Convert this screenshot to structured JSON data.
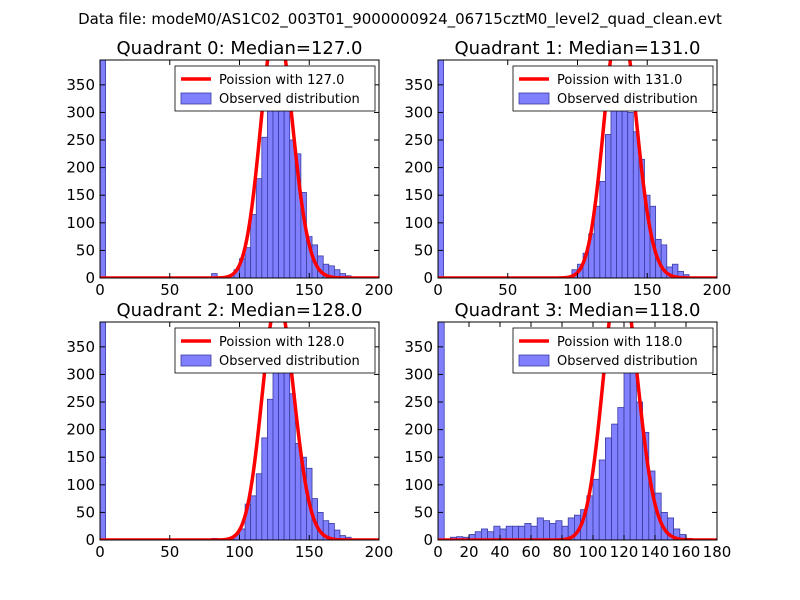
{
  "figure": {
    "suptitle": "Data file: modeM0/AS1C02_003T01_9000000924_06715cztM0_level2_quad_clean.evt"
  },
  "colors": {
    "bar_fill": "#8080ff",
    "bar_edge": "#3a3aa0",
    "poisson_line": "#ff0000",
    "legend_edge": "#000000"
  },
  "chart_data": [
    {
      "type": "bar",
      "title": "Quadrant 0: Median=127.0",
      "median": 127.0,
      "xlim": [
        0,
        200
      ],
      "ylim": [
        0,
        395
      ],
      "xticks": [
        0,
        50,
        100,
        150,
        200
      ],
      "yticks": [
        0,
        50,
        100,
        150,
        200,
        250,
        300,
        350
      ],
      "xlabel": "",
      "ylabel": "",
      "legend": {
        "position": "top-right",
        "poisson_label": "Poission with 127.0",
        "observed_label": "Observed distribution"
      },
      "bin_width": 4,
      "bin_starts": [
        0,
        80,
        92,
        96,
        100,
        104,
        108,
        112,
        116,
        120,
        124,
        128,
        132,
        136,
        140,
        144,
        148,
        152,
        156,
        160,
        164,
        168,
        172,
        176,
        180
      ],
      "counts": [
        395,
        8,
        4,
        15,
        35,
        55,
        115,
        180,
        255,
        320,
        360,
        345,
        310,
        250,
        225,
        155,
        75,
        60,
        40,
        25,
        22,
        15,
        8,
        4,
        2
      ]
    },
    {
      "type": "bar",
      "title": "Quadrant 1: Median=131.0",
      "median": 131.0,
      "xlim": [
        0,
        200
      ],
      "ylim": [
        0,
        395
      ],
      "xticks": [
        0,
        50,
        100,
        150,
        200
      ],
      "yticks": [
        0,
        50,
        100,
        150,
        200,
        250,
        300,
        350
      ],
      "xlabel": "",
      "ylabel": "",
      "legend": {
        "position": "top-right",
        "poisson_label": "Poission with 131.0",
        "observed_label": "Observed distribution"
      },
      "bin_width": 4,
      "bin_starts": [
        0,
        92,
        96,
        100,
        104,
        108,
        112,
        116,
        120,
        124,
        128,
        132,
        136,
        140,
        144,
        148,
        152,
        156,
        160,
        164,
        168,
        172,
        176,
        180
      ],
      "counts": [
        395,
        3,
        15,
        25,
        45,
        80,
        130,
        175,
        260,
        315,
        365,
        340,
        300,
        265,
        215,
        150,
        130,
        70,
        60,
        20,
        25,
        12,
        6,
        2
      ]
    },
    {
      "type": "bar",
      "title": "Quadrant 2: Median=128.0",
      "median": 128.0,
      "xlim": [
        0,
        200
      ],
      "ylim": [
        0,
        395
      ],
      "xticks": [
        0,
        50,
        100,
        150,
        200
      ],
      "yticks": [
        0,
        50,
        100,
        150,
        200,
        250,
        300,
        350
      ],
      "xlabel": "",
      "ylabel": "",
      "legend": {
        "position": "top-right",
        "poisson_label": "Poission with 128.0",
        "observed_label": "Observed distribution"
      },
      "bin_width": 4,
      "bin_starts": [
        0,
        80,
        92,
        96,
        100,
        104,
        108,
        112,
        116,
        120,
        124,
        128,
        132,
        136,
        140,
        144,
        148,
        152,
        156,
        160,
        164,
        168,
        172,
        176,
        180
      ],
      "counts": [
        395,
        3,
        4,
        10,
        20,
        65,
        80,
        120,
        185,
        255,
        345,
        355,
        320,
        265,
        175,
        150,
        130,
        75,
        50,
        35,
        30,
        18,
        8,
        5,
        2
      ]
    },
    {
      "type": "bar",
      "title": "Quadrant 3: Median=118.0",
      "median": 118.0,
      "xlim": [
        0,
        180
      ],
      "ylim": [
        0,
        395
      ],
      "xticks": [
        0,
        20,
        40,
        60,
        80,
        100,
        120,
        140,
        160,
        180
      ],
      "yticks": [
        0,
        50,
        100,
        150,
        200,
        250,
        300,
        350
      ],
      "xlabel": "",
      "ylabel": "",
      "legend": {
        "position": "top-right",
        "poisson_label": "Poission with 118.0",
        "observed_label": "Observed distribution"
      },
      "bin_width": 4,
      "bin_starts": [
        0,
        8,
        12,
        16,
        20,
        24,
        28,
        32,
        36,
        40,
        44,
        48,
        52,
        56,
        60,
        64,
        68,
        72,
        76,
        80,
        84,
        88,
        92,
        96,
        100,
        104,
        108,
        112,
        116,
        120,
        124,
        128,
        132,
        136,
        140,
        144,
        148,
        152,
        156,
        160
      ],
      "counts": [
        395,
        5,
        6,
        5,
        10,
        15,
        20,
        15,
        25,
        20,
        25,
        25,
        25,
        30,
        25,
        40,
        35,
        30,
        35,
        25,
        40,
        45,
        55,
        80,
        110,
        145,
        185,
        210,
        240,
        325,
        315,
        250,
        195,
        125,
        85,
        50,
        40,
        20,
        10,
        3
      ]
    }
  ]
}
